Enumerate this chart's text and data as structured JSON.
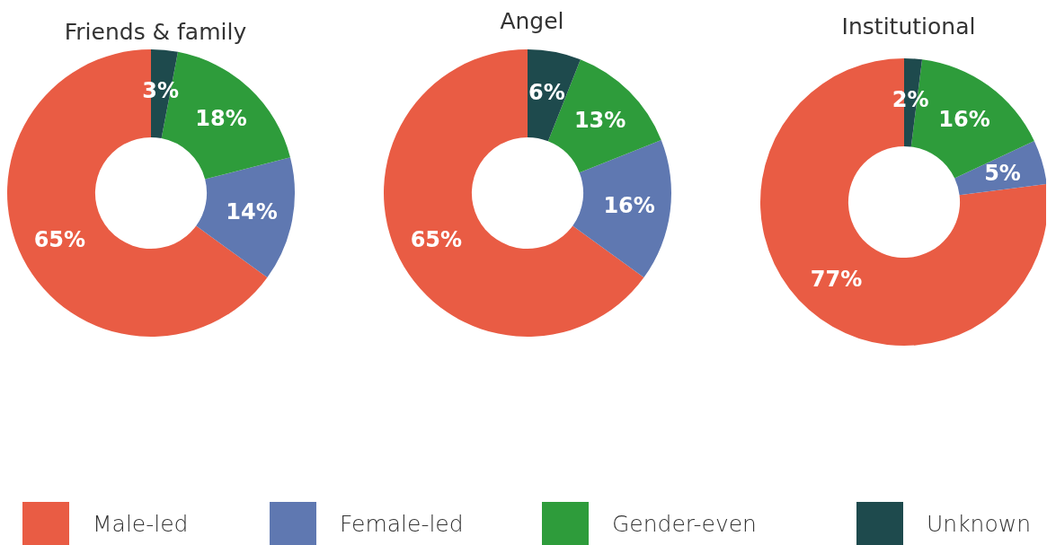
{
  "chart_data": [
    {
      "type": "donut",
      "title": "Friends & family",
      "categories": [
        "Male-led",
        "Female-led",
        "Gender-even",
        "Unknown"
      ],
      "values": [
        65,
        14,
        18,
        3
      ],
      "value_labels": [
        "65%",
        "14%",
        "18%",
        "3%"
      ],
      "colors": [
        "#e95c44",
        "#5f78b1",
        "#2e9c3b",
        "#1e4a4d"
      ],
      "legend": "bottom"
    },
    {
      "type": "donut",
      "title": "Angel",
      "categories": [
        null,
        null,
        null,
        null
      ],
      "values": [
        65,
        16,
        13,
        6
      ],
      "value_labels": [
        "65%",
        "16%",
        "13%",
        "6%"
      ],
      "colors": [
        "#e95c44",
        "#5f78b1",
        "#2e9c3b",
        "#1e4a4d"
      ]
    },
    {
      "type": "donut",
      "title": "Institutional",
      "categories": [
        null,
        null,
        null,
        null
      ],
      "values": [
        77,
        5,
        16,
        2
      ],
      "value_labels": [
        "77%",
        "5%",
        "16%",
        "2%"
      ],
      "colors": [
        "#e95c44",
        "#5f78b1",
        "#2e9c3b",
        "#1e4a4d"
      ]
    }
  ]
}
